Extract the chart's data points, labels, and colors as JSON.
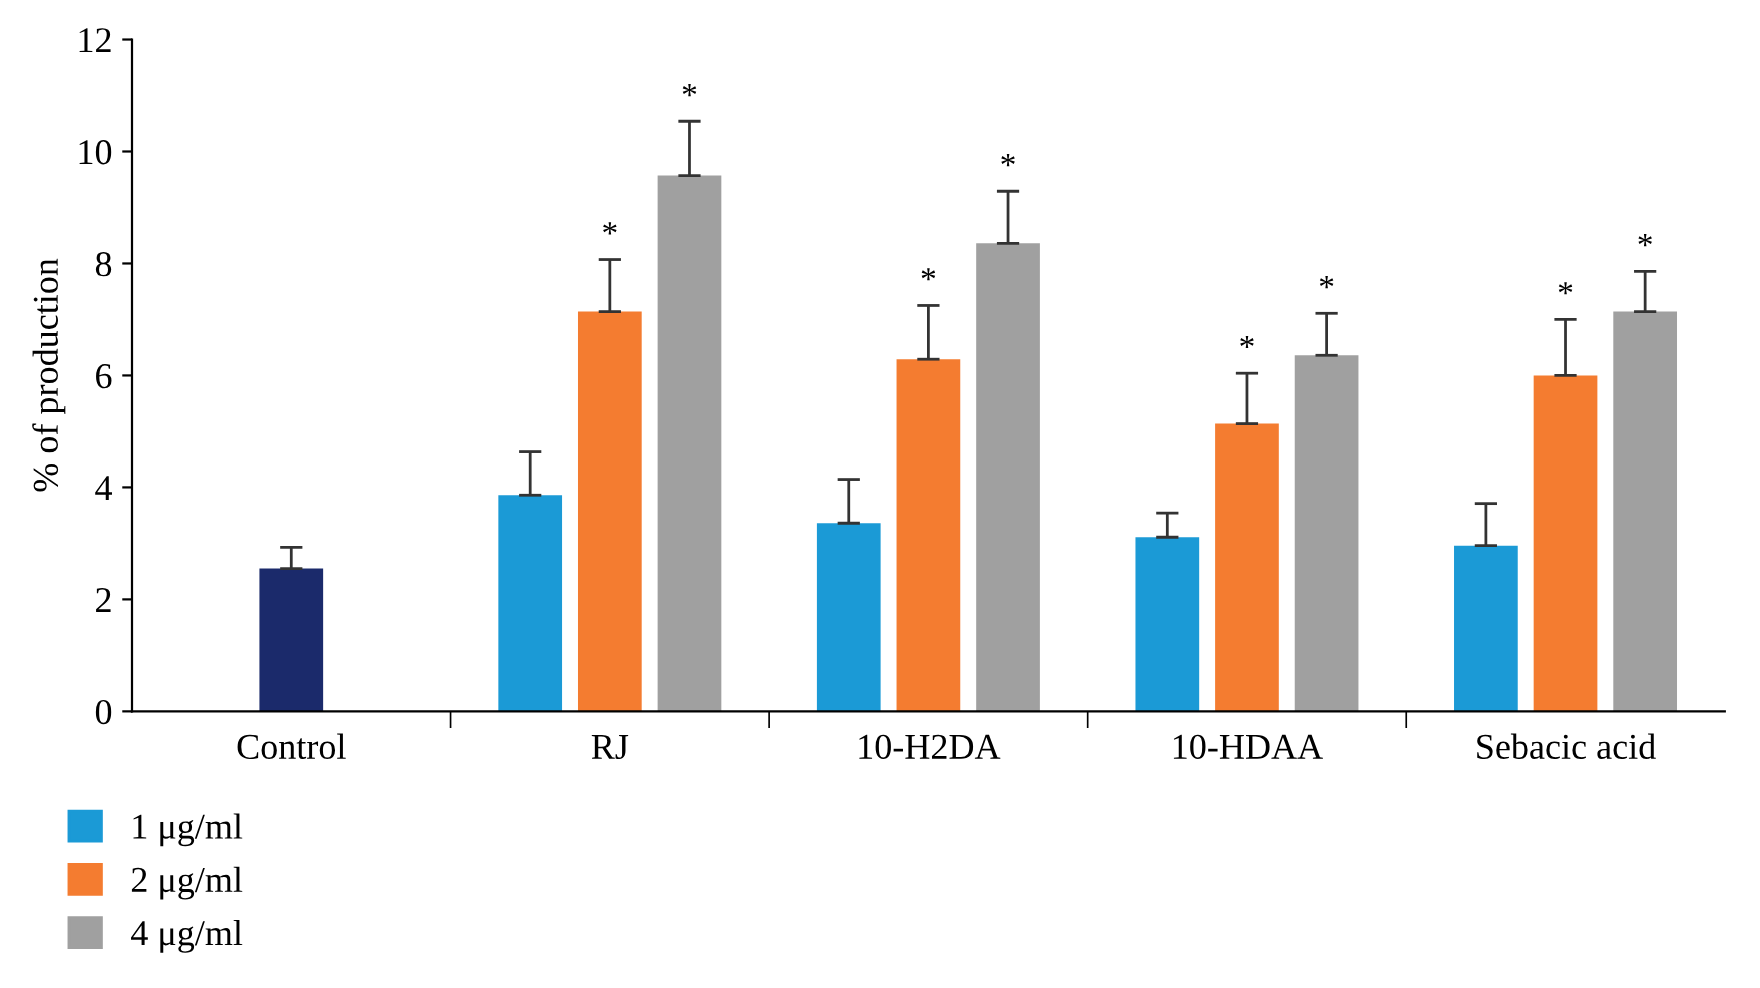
{
  "chart_data": {
    "type": "bar",
    "ylabel": "% of production",
    "categories": [
      "Control",
      "RJ",
      "10-H2DA",
      "10-HDAA",
      "Sebacic acid"
    ],
    "series": [
      {
        "color": "#1b2a6b",
        "values": [
          2.55,
          null,
          null,
          null,
          null
        ],
        "errors": [
          [
            2.55,
            2.93
          ],
          null,
          null,
          null,
          null
        ]
      },
      {
        "name": "1 μg/ml",
        "color": "#1b9ad6",
        "values": [
          null,
          3.86,
          3.36,
          3.11,
          2.96
        ],
        "errors": [
          null,
          [
            3.86,
            4.64
          ],
          [
            3.36,
            4.14
          ],
          [
            3.11,
            3.54
          ],
          [
            2.96,
            3.71
          ]
        ]
      },
      {
        "name": "2 μg/ml",
        "color": "#f47c30",
        "values": [
          null,
          7.14,
          6.29,
          5.14,
          6.0
        ],
        "errors": [
          null,
          [
            7.14,
            8.07
          ],
          [
            6.29,
            7.25
          ],
          [
            5.14,
            6.04
          ],
          [
            6.0,
            7.0
          ]
        ],
        "value_labels": [
          null,
          "*",
          "*",
          "*",
          "*"
        ]
      },
      {
        "name": "4 μg/ml",
        "color": "#a0a0a0",
        "values": [
          null,
          9.57,
          8.36,
          6.36,
          7.14
        ],
        "errors": [
          null,
          [
            9.57,
            10.54
          ],
          [
            8.36,
            9.29
          ],
          [
            6.36,
            7.11
          ],
          [
            7.14,
            7.86
          ]
        ],
        "value_labels": [
          null,
          "*",
          "*",
          "*",
          "*"
        ]
      }
    ],
    "ylim": [
      0,
      12
    ],
    "yticks": [
      0,
      2,
      4,
      6,
      8,
      10,
      12
    ],
    "grid": false,
    "legend": "bottom left"
  }
}
